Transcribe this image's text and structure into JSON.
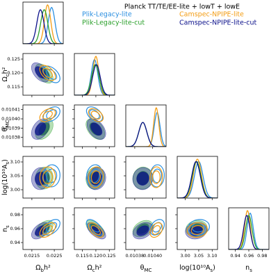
{
  "chart_data": {
    "type": "triangle",
    "title": "Planck TT/TE/EE-lite + lowT + lowE",
    "parameters": [
      {
        "label": [
          "Ω",
          "b",
          "h²"
        ],
        "lim": [
          0.0211,
          0.0229
        ],
        "xticks": [
          0.0215,
          0.0225
        ]
      },
      {
        "label": [
          "Ω",
          "c",
          "h²"
        ],
        "lim": [
          0.112,
          0.127
        ],
        "xticks": [
          0.115,
          {
            "value": 0.12,
            "label": "0.120"
          },
          0.125
        ],
        "yticks": [
          0.115,
          {
            "value": 0.12,
            "label": "0.120"
          },
          0.125
        ]
      },
      {
        "label": [
          "θ",
          "MC"
        ],
        "lim": [
          0.01037,
          0.010415
        ],
        "xticks": [
          0.01038,
          {
            "value": 0.0104,
            "label": "0.01040"
          }
        ],
        "yticks": [
          0.01038,
          0.01039,
          {
            "value": 0.0104,
            "label": "0.01040"
          },
          0.01041
        ]
      },
      {
        "label": [
          "log(10¹⁰A",
          "s",
          ")"
        ],
        "lim": [
          2.97,
          3.12
        ],
        "xticks": [
          {
            "value": 3.0,
            "label": "3.00"
          },
          3.05,
          {
            "value": 3.1,
            "label": "3.10"
          }
        ],
        "yticks": [
          {
            "value": 3.0,
            "label": "3.00"
          },
          3.05,
          {
            "value": 3.1,
            "label": "3.10"
          }
        ]
      },
      {
        "label": [
          "n",
          "s"
        ],
        "lim": [
          0.93,
          0.99
        ],
        "xticks": [
          0.94,
          0.96,
          0.98
        ],
        "yticks": [
          0.94,
          0.96,
          0.98
        ]
      }
    ],
    "correlations": [
      [
        -0.5
      ],
      [
        0.4,
        -0.45
      ],
      [
        0.05,
        0.1,
        0.05
      ],
      [
        0.5,
        -0.6,
        0.35,
        0.1
      ]
    ],
    "series": [
      {
        "name": "Plik-Legacy-lite",
        "color": "#2b8fe0",
        "filled": false,
        "mean": [
          0.02238,
          0.1195,
          0.010405,
          3.05,
          0.962
        ],
        "sigma": [
          0.00015,
          0.0012,
          3.2e-06,
          0.016,
          0.0045
        ]
      },
      {
        "name": "Camspec-NPIPE-lite",
        "color": "#f39c12",
        "filled": false,
        "mean": [
          0.0222,
          0.12,
          0.010404,
          3.045,
          0.958
        ],
        "sigma": [
          0.00014,
          0.0011,
          2.8e-06,
          0.015,
          0.0042
        ]
      },
      {
        "name": "Plik-Legacy-lite-cut",
        "color": "#2ca02c",
        "filled": true,
        "mean": [
          0.02205,
          0.1198,
          0.010389,
          3.042,
          0.96
        ],
        "sigma": [
          0.00016,
          0.0014,
          4.5e-06,
          0.016,
          0.0048
        ]
      },
      {
        "name": "Camspec-NPIPE-lite-cut",
        "color": "#0a0f8a",
        "filled": true,
        "mean": [
          0.02188,
          0.1202,
          0.010389,
          3.04,
          0.957
        ],
        "sigma": [
          0.00016,
          0.0014,
          4.5e-06,
          0.016,
          0.0048
        ]
      }
    ]
  }
}
